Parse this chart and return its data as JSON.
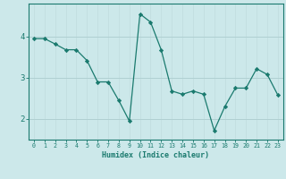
{
  "x": [
    0,
    1,
    2,
    3,
    4,
    5,
    6,
    7,
    8,
    9,
    10,
    11,
    12,
    13,
    14,
    15,
    16,
    17,
    18,
    19,
    20,
    21,
    22,
    23
  ],
  "y": [
    3.95,
    3.95,
    3.82,
    3.68,
    3.68,
    3.42,
    2.9,
    2.9,
    2.45,
    1.95,
    4.55,
    4.35,
    3.68,
    2.68,
    2.6,
    2.68,
    2.6,
    1.72,
    2.3,
    2.75,
    2.75,
    3.22,
    3.08,
    2.58
  ],
  "line_color": "#1a7a6e",
  "marker": "D",
  "marker_size": 2.2,
  "bg_color": "#cce8ea",
  "grid_color": "#b0d0d2",
  "grid_color_v": "#c0dcde",
  "tick_color": "#1a7a6e",
  "label_color": "#1a7a6e",
  "xlabel": "Humidex (Indice chaleur)",
  "ylim": [
    1.5,
    4.8
  ],
  "xlim": [
    -0.5,
    23.5
  ],
  "yticks": [
    2,
    3,
    4
  ],
  "xticks": [
    0,
    1,
    2,
    3,
    4,
    5,
    6,
    7,
    8,
    9,
    10,
    11,
    12,
    13,
    14,
    15,
    16,
    17,
    18,
    19,
    20,
    21,
    22,
    23
  ]
}
